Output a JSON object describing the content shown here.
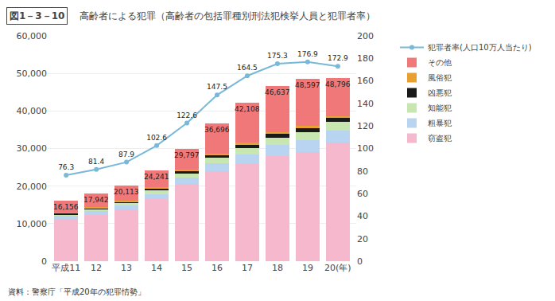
{
  "chart_data": {
    "type": "bar",
    "title": "高齢者による犯罪（高齢者の包括罪種別刑法犯検挙人員と犯罪者率）",
    "annotations": [
      "図1－3－10",
      "資料：警察庁「平成20年の犯罪情勢」"
    ],
    "categories": [
      "平成11",
      "12",
      "13",
      "14",
      "15",
      "16",
      "17",
      "18",
      "19",
      "20(年)"
    ],
    "stacked": true,
    "series": [
      {
        "name": "窃盗犯",
        "color": "#f5b8cc",
        "values": [
          11200,
          12400,
          13800,
          16500,
          20500,
          24000,
          26000,
          28000,
          29000,
          31500
        ]
      },
      {
        "name": "粗暴犯",
        "color": "#b8d4f0",
        "values": [
          800,
          900,
          1050,
          1400,
          1700,
          2100,
          2500,
          2900,
          3200,
          3200
        ]
      },
      {
        "name": "知能犯",
        "color": "#c8e6b0",
        "values": [
          450,
          550,
          650,
          950,
          1150,
          1400,
          1700,
          2000,
          2200,
          2300
        ]
      },
      {
        "name": "凶悪犯",
        "color": "#1a1a1a",
        "values": [
          300,
          350,
          400,
          550,
          650,
          800,
          950,
          1050,
          1100,
          1100
        ]
      },
      {
        "name": "風俗犯",
        "color": "#e8a030",
        "values": [
          150,
          170,
          200,
          250,
          300,
          350,
          400,
          450,
          500,
          500
        ]
      },
      {
        "name": "その他",
        "color": "#f07878",
        "values": [
          3256,
          3572,
          4013,
          4591,
          5497,
          8046,
          10558,
          12237,
          12597,
          10196
        ]
      },
      {
        "name": "犯罪者率(人口10万人当たり)",
        "type": "line",
        "axis": "y2",
        "color": "#78b8d8",
        "marker": "circle",
        "data_labels": true,
        "values": [
          76.3,
          81.4,
          87.9,
          102.6,
          122.6,
          147.5,
          164.5,
          175.3,
          176.9,
          172.9
        ]
      }
    ],
    "totals": [
      16156,
      17942,
      20113,
      24241,
      29797,
      36696,
      42108,
      46637,
      48597,
      48796
    ],
    "total_labels": [
      "16,156",
      "17,942",
      "20,113",
      "24,241",
      "29,797",
      "36,696",
      "42,108",
      "46,637",
      "48,597",
      "48,796"
    ],
    "ylim": [
      0,
      60000
    ],
    "yticks": [
      0,
      {
        "value": 10000,
        "label": "10,000"
      },
      {
        "value": 20000,
        "label": "20,000"
      },
      {
        "value": 30000,
        "label": "30,000"
      },
      {
        "value": 40000,
        "label": "40,000"
      },
      {
        "value": 50000,
        "label": "50,000"
      },
      {
        "value": 60000,
        "label": "60,000"
      }
    ],
    "y2lim": [
      0,
      200
    ],
    "y2ticks": [
      0,
      20,
      40,
      60,
      80,
      100,
      120,
      140,
      160,
      180,
      200
    ],
    "grid": true,
    "legend": "right"
  }
}
